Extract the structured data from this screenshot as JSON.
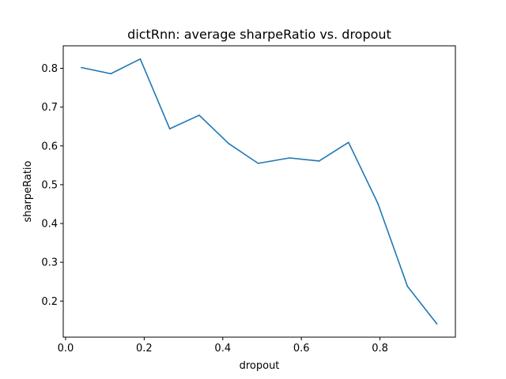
{
  "chart_data": {
    "type": "line",
    "title": "dictRnn: average sharpeRatio vs. dropout",
    "xlabel": "dropout",
    "ylabel": "sharpeRatio",
    "xlim": [
      -0.006,
      0.992
    ],
    "ylim": [
      0.107,
      0.858
    ],
    "xticks": [
      0.0,
      0.2,
      0.4,
      0.6,
      0.8
    ],
    "xtick_labels": [
      "0.0",
      "0.2",
      "0.4",
      "0.6",
      "0.8"
    ],
    "yticks": [
      0.2,
      0.3,
      0.4,
      0.5,
      0.6,
      0.7,
      0.8
    ],
    "ytick_labels": [
      "0.2",
      "0.3",
      "0.4",
      "0.5",
      "0.6",
      "0.7",
      "0.8"
    ],
    "grid": false,
    "series": [
      {
        "color": "#1f77b4",
        "x": [
          0.04,
          0.115,
          0.19,
          0.265,
          0.34,
          0.415,
          0.49,
          0.57,
          0.645,
          0.72,
          0.795,
          0.87,
          0.945
        ],
        "y": [
          0.802,
          0.786,
          0.824,
          0.644,
          0.679,
          0.606,
          0.555,
          0.569,
          0.561,
          0.609,
          0.451,
          0.238,
          0.141
        ]
      }
    ]
  }
}
